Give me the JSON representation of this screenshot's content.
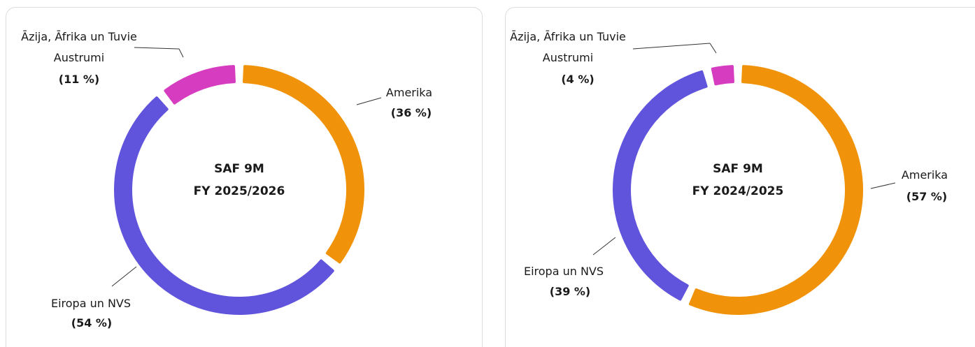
{
  "chart_data": [
    {
      "type": "pie",
      "title": "SAF 9M",
      "subtitle": "FY 2025/2026",
      "categories": [
        "Amerika",
        "Eiropa un NVS",
        "Āzija, Āfrika un Tuvie Austrumi"
      ],
      "values": [
        36,
        54,
        11
      ],
      "value_labels": [
        "(36 %)",
        "(54 %)",
        "(11 %)"
      ],
      "colors": [
        "#f0930a",
        "#6154dc",
        "#d63cc0"
      ]
    },
    {
      "type": "pie",
      "title": "SAF 9M",
      "subtitle": "FY 2024/2025",
      "categories": [
        "Amerika",
        "Eiropa un NVS",
        "Āzija, Āfrika un Tuvie Austrumi"
      ],
      "values": [
        57,
        39,
        4
      ],
      "value_labels": [
        "(57 %)",
        "(39 %)",
        "(4 %)"
      ],
      "colors": [
        "#f0930a",
        "#6154dc",
        "#d63cc0"
      ]
    }
  ]
}
